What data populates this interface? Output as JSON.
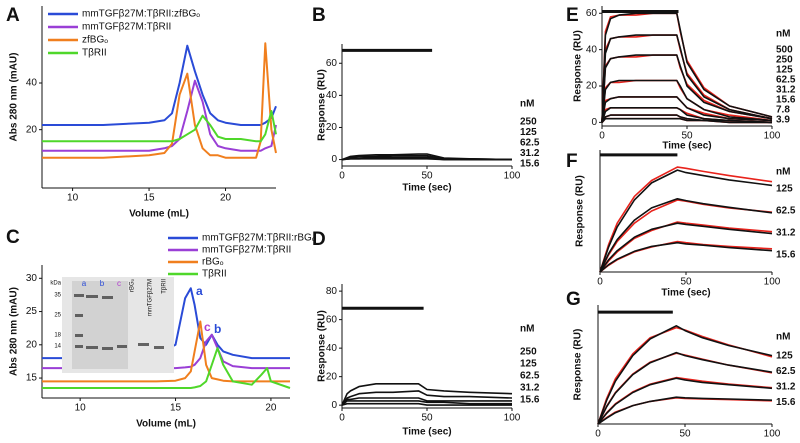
{
  "chart_data": [
    {
      "type": "line",
      "label": "A",
      "xlabel": "Volume (mL)",
      "ylabel": "Abs 280 nm (mAU)",
      "xlim": [
        8,
        23.3
      ],
      "ylim": [
        -5,
        73
      ],
      "xticks": [
        10,
        15,
        20
      ],
      "yticks": [
        20,
        40
      ],
      "x": [
        8,
        12,
        15,
        16,
        16.5,
        17,
        17.5,
        18,
        18.5,
        19,
        19.5,
        20,
        21,
        22,
        22.3,
        22.6,
        23,
        23.3
      ],
      "series": [
        {
          "name": "mmTGFβ27M:TβRII:zfBGₒ",
          "color": "#2a4bd7",
          "values": [
            22,
            22,
            23,
            24,
            27,
            40,
            56,
            45,
            35,
            27,
            24,
            23,
            22,
            22,
            22,
            23,
            25,
            30
          ]
        },
        {
          "name": "mmTGFβ27M:TβRII",
          "color": "#9a3fd6",
          "values": [
            11,
            11,
            11,
            12,
            13,
            16,
            28,
            41,
            32,
            18,
            13,
            12,
            11,
            11,
            11,
            12,
            13,
            22
          ]
        },
        {
          "name": "zfBGₒ",
          "color": "#f07f1e",
          "values": [
            8,
            8,
            9,
            10,
            14,
            35,
            44,
            22,
            12,
            9,
            9,
            8,
            8,
            8,
            15,
            57,
            20,
            10
          ]
        },
        {
          "name": "TβRII",
          "color": "#4fd72a",
          "values": [
            15,
            15,
            15,
            15,
            15,
            16,
            18,
            20,
            26,
            22,
            17,
            16,
            16,
            15,
            15,
            18,
            28,
            18
          ]
        }
      ]
    },
    {
      "type": "line",
      "label": "B",
      "xlabel": "Time (sec)",
      "ylabel": "Response (RU)",
      "xlim": [
        0,
        100
      ],
      "ylim": [
        -4,
        72
      ],
      "xticks": [
        0,
        50,
        100
      ],
      "yticks": [
        0,
        20,
        40,
        60
      ],
      "injection_bar": {
        "x": [
          0,
          53
        ],
        "y": 68
      },
      "conc_unit": "nM",
      "concentrations": [
        250,
        125,
        62.5,
        31.2,
        15.6
      ],
      "x": [
        0,
        5,
        10,
        20,
        30,
        45,
        50,
        60,
        75,
        100
      ],
      "series": [
        {
          "color": "#111111",
          "values": [
            0,
            2,
            2.5,
            3,
            3,
            3.5,
            3.5,
            1,
            0.5,
            0
          ]
        },
        {
          "color": "#111111",
          "values": [
            0,
            1.5,
            2,
            2,
            2.5,
            2.5,
            2.5,
            0.5,
            0.5,
            0
          ]
        },
        {
          "color": "#111111",
          "values": [
            0,
            1,
            1,
            1.5,
            1.5,
            1.5,
            1.5,
            0.5,
            0,
            0
          ]
        },
        {
          "color": "#111111",
          "values": [
            0,
            0.5,
            0.5,
            1,
            1,
            1,
            1,
            0,
            0,
            0
          ]
        },
        {
          "color": "#111111",
          "values": [
            0,
            0.5,
            0.5,
            0.5,
            0.5,
            0.5,
            0.5,
            0,
            0,
            0
          ]
        }
      ]
    },
    {
      "type": "line",
      "label": "C",
      "xlabel": "Volume (mL)",
      "ylabel": "Abs 280 nm (mAU)",
      "xlim": [
        8,
        21
      ],
      "ylim": [
        12,
        32
      ],
      "xticks": [
        10,
        15,
        20
      ],
      "yticks": [
        15,
        20,
        25,
        30
      ],
      "x": [
        8,
        10,
        12,
        14,
        15,
        15.5,
        15.8,
        16,
        16.3,
        16.6,
        16.9,
        17.2,
        17.5,
        18,
        19,
        19.5,
        19.8,
        20,
        21
      ],
      "series": [
        {
          "name": "mmTGFβ27M:TβRII:rBGₒ",
          "color": "#2a4bd7",
          "values": [
            18,
            18,
            18.2,
            18.5,
            20,
            27,
            28.5,
            26,
            21,
            20,
            21.5,
            20,
            19,
            18.5,
            18,
            18,
            18,
            18,
            18
          ]
        },
        {
          "name": "mmTGFβ27M:TβRII",
          "color": "#9a3fd6",
          "values": [
            16.5,
            16.5,
            16.5,
            16.5,
            16.5,
            16.6,
            16.7,
            17,
            18,
            20.5,
            21.5,
            19.5,
            17.5,
            16.8,
            16.5,
            16.5,
            16.5,
            16.5,
            16.5
          ]
        },
        {
          "name": "rBGₒ",
          "color": "#f07f1e",
          "values": [
            14.5,
            14.5,
            14.5,
            14.5,
            14.6,
            15,
            16,
            19,
            23.5,
            17,
            15,
            14.8,
            14.6,
            14.5,
            14.5,
            14.5,
            14.5,
            14.5,
            14.5
          ]
        },
        {
          "name": "TβRII",
          "color": "#4fd72a",
          "values": [
            13.5,
            13.5,
            13.5,
            13.5,
            13.5,
            13.5,
            13.5,
            13.6,
            13.8,
            14.5,
            17,
            19.5,
            17,
            14.5,
            14,
            15.5,
            16.5,
            14.5,
            13.5
          ]
        }
      ],
      "peak_labels": [
        {
          "text": "a",
          "color": "#2a4bd7"
        },
        {
          "text": "c",
          "color": "#b23bd0"
        },
        {
          "text": "b",
          "color": "#2a4bd7"
        }
      ],
      "gel": {
        "unit": "kDa",
        "markers": [
          35,
          25,
          18,
          14
        ],
        "lanes": [
          {
            "text": "a",
            "color": "#2a4bd7"
          },
          {
            "text": "b",
            "color": "#2a4bd7"
          },
          {
            "text": "c",
            "color": "#b23bd0"
          },
          {
            "text": "rBGₒ",
            "color": "#111111"
          },
          {
            "text": "mmTGFβ27M",
            "color": "#111111"
          },
          {
            "text": "TβRII",
            "color": "#111111"
          }
        ]
      }
    },
    {
      "type": "line",
      "label": "D",
      "xlabel": "Time (sec)",
      "ylabel": "Response (RU)",
      "xlim": [
        0,
        100
      ],
      "ylim": [
        -2,
        85
      ],
      "xticks": [
        0,
        50,
        100
      ],
      "yticks": [
        0,
        20,
        40,
        60,
        80
      ],
      "injection_bar": {
        "x": [
          0,
          48
        ],
        "y": 68
      },
      "conc_unit": "nM",
      "concentrations": [
        250,
        125,
        62.5,
        31.2,
        15.6
      ],
      "x": [
        0,
        3,
        5,
        10,
        20,
        30,
        45,
        50,
        60,
        75,
        100
      ],
      "series": [
        {
          "color": "#111111",
          "values": [
            0,
            8,
            10,
            13,
            15,
            15,
            15,
            11,
            10,
            9,
            8
          ]
        },
        {
          "color": "#111111",
          "values": [
            0,
            5,
            6,
            8,
            9,
            9,
            10,
            7,
            6,
            6,
            5
          ]
        },
        {
          "color": "#111111",
          "values": [
            0,
            4,
            4,
            5,
            5,
            5,
            5,
            3,
            3,
            3,
            3
          ]
        },
        {
          "color": "#111111",
          "values": [
            0,
            3,
            3,
            3,
            3,
            3,
            3,
            2,
            2,
            1,
            1
          ]
        },
        {
          "color": "#111111",
          "values": [
            0,
            1,
            1,
            1,
            1,
            1,
            1,
            0,
            0,
            0,
            0
          ]
        }
      ]
    },
    {
      "type": "line",
      "label": "E",
      "xlabel": "Time (sec)",
      "ylabel": "Response (RU)",
      "xlim": [
        0,
        100
      ],
      "ylim": [
        -2,
        64
      ],
      "xticks": [
        0,
        50,
        100
      ],
      "yticks": [
        0,
        20,
        40,
        60
      ],
      "injection_bar": {
        "x": [
          0,
          45
        ],
        "y": 61
      },
      "conc_unit": "nM",
      "concentrations": [
        500,
        250,
        125,
        62.5,
        31.2,
        15.6,
        7.8,
        3.9
      ],
      "x": [
        0,
        2,
        5,
        10,
        20,
        30,
        44,
        46,
        50,
        60,
        75,
        100
      ],
      "series": [
        {
          "color": "#e8231c",
          "values": [
            0,
            50,
            58,
            59,
            59,
            60,
            60,
            50,
            34,
            19,
            9,
            3
          ]
        },
        {
          "color": "#e8231c",
          "values": [
            0,
            40,
            46,
            47,
            47,
            48,
            48,
            40,
            27,
            15,
            7,
            2
          ]
        },
        {
          "color": "#e8231c",
          "values": [
            0,
            31,
            35,
            36,
            36,
            37,
            37,
            30,
            21,
            12,
            6,
            2
          ]
        },
        {
          "color": "#e8231c",
          "values": [
            0,
            19,
            22,
            22,
            23,
            23,
            23,
            19,
            13,
            7,
            4,
            1
          ]
        },
        {
          "color": "#e8231c",
          "values": [
            0,
            12,
            13,
            14,
            14,
            14,
            14,
            12,
            8,
            5,
            2,
            1
          ]
        },
        {
          "color": "#e8231c",
          "values": [
            0,
            7,
            8,
            8,
            8,
            8,
            8,
            7,
            5,
            2,
            1,
            0
          ]
        },
        {
          "color": "#e8231c",
          "values": [
            0,
            3,
            4,
            4,
            4,
            4,
            4,
            3,
            2,
            1,
            1,
            0
          ]
        },
        {
          "color": "#e8231c",
          "values": [
            0,
            2,
            2,
            2,
            2,
            2,
            2,
            2,
            1,
            1,
            0,
            0
          ]
        },
        {
          "color": "#111111",
          "values": [
            0,
            48,
            57,
            59,
            60,
            60,
            60,
            51,
            33,
            18,
            9,
            3
          ]
        },
        {
          "color": "#111111",
          "values": [
            0,
            38,
            46,
            47,
            48,
            48,
            48,
            41,
            26,
            14,
            7,
            2
          ]
        },
        {
          "color": "#111111",
          "values": [
            0,
            30,
            35,
            36,
            37,
            37,
            37,
            31,
            20,
            11,
            6,
            2
          ]
        },
        {
          "color": "#111111",
          "values": [
            0,
            18,
            22,
            23,
            23,
            23,
            23,
            20,
            13,
            7,
            3,
            1
          ]
        },
        {
          "color": "#111111",
          "values": [
            0,
            11,
            13,
            14,
            14,
            14,
            14,
            12,
            8,
            4,
            2,
            1
          ]
        },
        {
          "color": "#111111",
          "values": [
            0,
            6,
            8,
            8,
            8,
            8,
            8,
            7,
            4,
            2,
            1,
            0
          ]
        },
        {
          "color": "#111111",
          "values": [
            0,
            3,
            4,
            4,
            4,
            4,
            4,
            3,
            2,
            1,
            1,
            0
          ]
        },
        {
          "color": "#111111",
          "values": [
            0,
            2,
            2,
            2,
            2,
            2,
            2,
            2,
            1,
            1,
            0,
            0
          ]
        }
      ]
    },
    {
      "type": "line",
      "label": "F",
      "xlabel": "Time (sec)",
      "ylabel": "Response (RU)",
      "xlim": [
        0,
        100
      ],
      "ylim": [
        0,
        200
      ],
      "xticks": [
        0,
        50,
        100
      ],
      "yticks": [],
      "injection_bar": {
        "x": [
          0,
          45
        ],
        "y": 192
      },
      "conc_unit": "nM",
      "concentrations": [
        125,
        62.5,
        31.2,
        15.6
      ],
      "x": [
        0,
        5,
        10,
        20,
        30,
        45,
        50,
        60,
        75,
        100
      ],
      "series": [
        {
          "color": "#e8231c",
          "values": [
            0,
            45,
            80,
            124,
            150,
            172,
            170,
            165,
            158,
            148
          ]
        },
        {
          "color": "#e8231c",
          "values": [
            0,
            28,
            50,
            80,
            100,
            118,
            116,
            111,
            105,
            98
          ]
        },
        {
          "color": "#e8231c",
          "values": [
            0,
            18,
            33,
            55,
            68,
            82,
            80,
            77,
            72,
            66
          ]
        },
        {
          "color": "#e8231c",
          "values": [
            0,
            11,
            20,
            33,
            41,
            50,
            48,
            45,
            42,
            38
          ]
        },
        {
          "color": "#111111",
          "values": [
            0,
            41,
            74,
            118,
            146,
            167,
            163,
            158,
            151,
            142
          ]
        },
        {
          "color": "#111111",
          "values": [
            0,
            30,
            53,
            85,
            105,
            120,
            117,
            112,
            106,
            97
          ]
        },
        {
          "color": "#111111",
          "values": [
            0,
            20,
            35,
            57,
            70,
            80,
            78,
            75,
            70,
            63
          ]
        },
        {
          "color": "#111111",
          "values": [
            0,
            12,
            21,
            34,
            42,
            48,
            46,
            44,
            40,
            35
          ]
        }
      ]
    },
    {
      "type": "line",
      "label": "G",
      "ylabel": "Response (RU)",
      "xlim": [
        0,
        100
      ],
      "ylim": [
        0,
        200
      ],
      "xticks": [
        0,
        50,
        100
      ],
      "yticks": [],
      "injection_bar": {
        "x": [
          0,
          43
        ],
        "y": 188
      },
      "conc_unit": "nM",
      "concentrations": [
        125,
        62.5,
        31.2,
        15.6
      ],
      "x": [
        0,
        5,
        10,
        20,
        30,
        45,
        50,
        60,
        75,
        100
      ],
      "series": [
        {
          "color": "#e8231c",
          "values": [
            0,
            43,
            76,
            118,
            145,
            162,
            158,
            147,
            133,
            113
          ]
        },
        {
          "color": "#e8231c",
          "values": [
            0,
            30,
            53,
            84,
            104,
            119,
            116,
            109,
            99,
            86
          ]
        },
        {
          "color": "#e8231c",
          "values": [
            0,
            19,
            34,
            54,
            67,
            78,
            76,
            72,
            67,
            61
          ]
        },
        {
          "color": "#e8231c",
          "values": [
            0,
            11,
            20,
            31,
            38,
            44,
            43,
            42,
            41,
            39
          ]
        },
        {
          "color": "#111111",
          "values": [
            0,
            40,
            72,
            115,
            143,
            165,
            157,
            145,
            132,
            115
          ]
        },
        {
          "color": "#111111",
          "values": [
            0,
            29,
            52,
            83,
            103,
            120,
            115,
            108,
            99,
            87
          ]
        },
        {
          "color": "#111111",
          "values": [
            0,
            18,
            33,
            53,
            66,
            77,
            74,
            70,
            66,
            60
          ]
        },
        {
          "color": "#111111",
          "values": [
            0,
            10,
            19,
            31,
            38,
            45,
            44,
            43,
            42,
            40
          ]
        }
      ]
    }
  ]
}
